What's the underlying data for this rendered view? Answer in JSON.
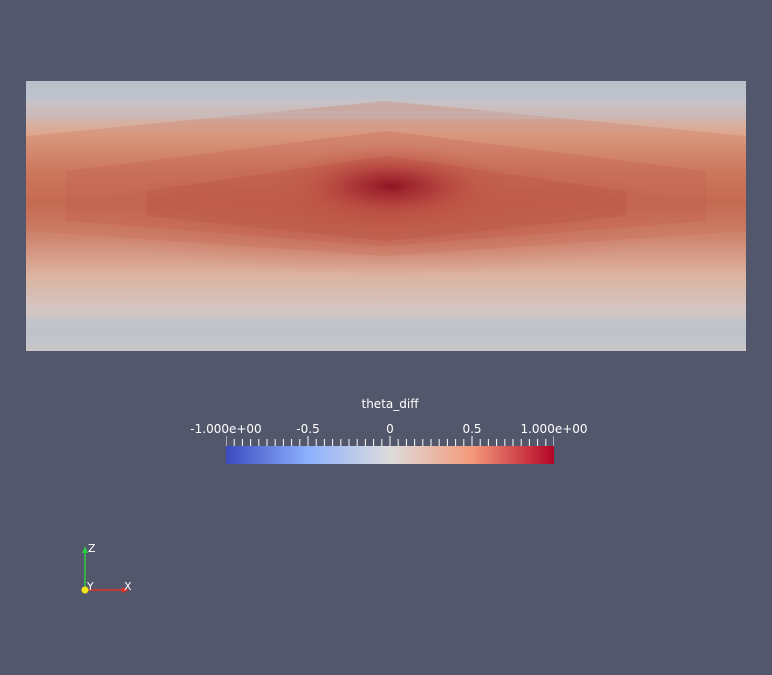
{
  "colorbar": {
    "title": "theta_diff",
    "labels": [
      "-1.000e+00",
      "-0.5",
      "0",
      "0.5",
      "1.000e+00"
    ],
    "range": [
      -1.0,
      1.0
    ],
    "colormap": "cool to warm",
    "colors": {
      "low": "#3b4cc0",
      "mid": "#dddcdc",
      "high": "#b40426"
    }
  },
  "orientation_axes": {
    "z_label": "Z",
    "y_label": "Y",
    "x_label": "X"
  },
  "colors": {
    "background": "#52576b",
    "text": "#ffffff"
  }
}
